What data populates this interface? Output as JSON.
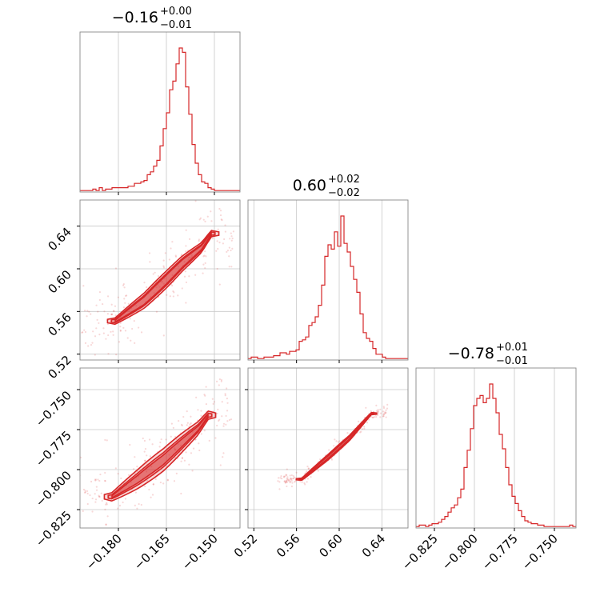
{
  "chart_data": {
    "type": "corner",
    "color": "#d62728",
    "grid": true,
    "parameters": [
      {
        "title": {
          "median": "−0.16",
          "plus": "+0.00",
          "minus": "−0.01"
        },
        "range": [
          -0.192,
          -0.142
        ],
        "ticks": [
          -0.18,
          -0.165,
          -0.15
        ],
        "tick_labels": [
          "−0.180",
          "−0.165",
          "−0.150"
        ],
        "histogram": {
          "bin_start": -0.192,
          "bin_width": 0.001,
          "counts": [
            0.01,
            0.01,
            0.01,
            0.01,
            0.02,
            0.01,
            0.03,
            0.01,
            0.02,
            0.02,
            0.03,
            0.03,
            0.03,
            0.03,
            0.03,
            0.04,
            0.04,
            0.06,
            0.06,
            0.07,
            0.08,
            0.12,
            0.14,
            0.18,
            0.22,
            0.32,
            0.44,
            0.55,
            0.71,
            0.77,
            0.89,
            1.0,
            0.97,
            0.73,
            0.54,
            0.33,
            0.2,
            0.12,
            0.07,
            0.06,
            0.03,
            0.02,
            0.01,
            0.01,
            0.01,
            0.01,
            0.01,
            0.01,
            0.01,
            0.01
          ]
        }
      },
      {
        "title": {
          "median": "0.60",
          "plus": "+0.02",
          "minus": "−0.02"
        },
        "range": [
          0.5145,
          0.6645
        ],
        "ticks": [
          0.52,
          0.56,
          0.6,
          0.64
        ],
        "tick_labels": [
          "0.52",
          "0.56",
          "0.60",
          "0.64"
        ],
        "histogram": {
          "bin_start": 0.5145,
          "bin_width": 0.003,
          "counts": [
            0.01,
            0.02,
            0.02,
            0.01,
            0.01,
            0.02,
            0.02,
            0.02,
            0.03,
            0.03,
            0.05,
            0.05,
            0.04,
            0.06,
            0.06,
            0.07,
            0.13,
            0.14,
            0.16,
            0.24,
            0.26,
            0.3,
            0.38,
            0.52,
            0.72,
            0.8,
            0.77,
            0.89,
            0.79,
            1.0,
            0.81,
            0.75,
            0.65,
            0.56,
            0.47,
            0.32,
            0.19,
            0.15,
            0.13,
            0.08,
            0.04,
            0.04,
            0.02,
            0.01,
            0.01,
            0.01,
            0.01,
            0.01,
            0.01,
            0.01
          ]
        }
      },
      {
        "title": {
          "median": "−0.78",
          "plus": "+0.01",
          "minus": "−0.01"
        },
        "range": [
          -0.8365,
          -0.7365
        ],
        "ticks": [
          -0.825,
          -0.8,
          -0.775,
          -0.75
        ],
        "tick_labels": [
          "−0.825",
          "−0.800",
          "−0.775",
          "−0.750"
        ],
        "histogram": {
          "bin_start": -0.8365,
          "bin_width": 0.002,
          "counts": [
            0.01,
            0.02,
            0.02,
            0.01,
            0.02,
            0.03,
            0.03,
            0.04,
            0.06,
            0.08,
            0.11,
            0.14,
            0.16,
            0.21,
            0.27,
            0.42,
            0.54,
            0.69,
            0.85,
            0.9,
            0.92,
            0.87,
            0.9,
            1.0,
            0.9,
            0.8,
            0.65,
            0.55,
            0.42,
            0.3,
            0.22,
            0.17,
            0.12,
            0.08,
            0.05,
            0.04,
            0.03,
            0.03,
            0.02,
            0.02,
            0.01,
            0.01,
            0.01,
            0.01,
            0.01,
            0.01,
            0.01,
            0.01,
            0.02,
            0.01
          ]
        }
      }
    ],
    "pairs": [
      {
        "x_param": 0,
        "y_param": 1,
        "ridge": [
          [
            -0.181,
            0.551
          ],
          [
            -0.172,
            0.57
          ],
          [
            -0.165,
            0.59
          ],
          [
            -0.16,
            0.605
          ],
          [
            -0.154,
            0.62
          ],
          [
            -0.151,
            0.633
          ]
        ],
        "half_width": [
          0.0042,
          0.0055,
          0.008
        ],
        "scatter_spread": 0.014
      },
      {
        "x_param": 0,
        "y_param": 2,
        "ridge": [
          [
            -0.182,
            -0.817
          ],
          [
            -0.174,
            -0.806
          ],
          [
            -0.166,
            -0.794
          ],
          [
            -0.16,
            -0.783
          ],
          [
            -0.155,
            -0.774
          ],
          [
            -0.152,
            -0.766
          ]
        ],
        "half_width": [
          0.003,
          0.0045,
          0.007
        ],
        "scatter_spread": 0.01
      },
      {
        "x_param": 1,
        "y_param": 2,
        "ridge": [
          [
            0.565,
            -0.806
          ],
          [
            0.59,
            -0.792
          ],
          [
            0.61,
            -0.78
          ],
          [
            0.63,
            -0.765
          ]
        ],
        "half_width": [
          0.0008,
          0.0012,
          0.0018
        ],
        "scatter_spread": 0.002
      }
    ]
  }
}
